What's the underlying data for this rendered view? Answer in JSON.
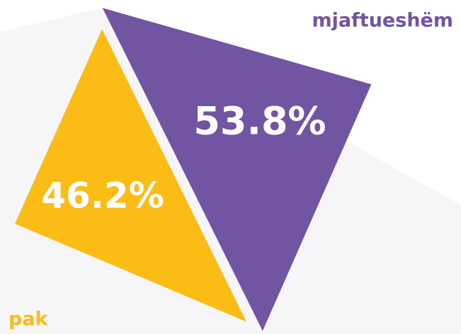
{
  "chart_data": {
    "type": "triangle",
    "categories": [
      "pak",
      "mjaftueshëm"
    ],
    "values": [
      46.2,
      53.8
    ],
    "value_labels": [
      "46.2%",
      "53.8%"
    ],
    "colors": [
      "#fbbc15",
      "#7155a2"
    ]
  }
}
